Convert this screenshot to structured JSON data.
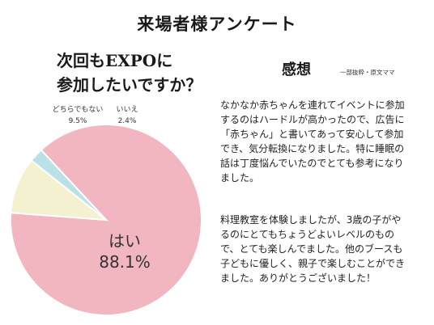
{
  "title": "来場者様アンケート",
  "question": {
    "line1": "次回もEXPOに",
    "line2": "参加したいですか？"
  },
  "impressions": {
    "heading": "感想",
    "note": "一部抜粋・原文ママ",
    "comments": [
      "なかなか赤ちゃんを連れてイベントに参加するのはハードルが高かったので、広告に「赤ちゃん」と書いてあって安心して参加でき、気分転換になりました。特に睡眠の話は丁度悩んでいたのでとても参考になりました。",
      "料理教室を体験しましたが、3歳の子がやるのにとてもちょうどよいレベルのもので、とても楽しんでました。他のブースも子どもに優しく、親子で楽しむことができました。ありがとうございました！"
    ]
  },
  "chart_data": {
    "type": "pie",
    "slices": [
      {
        "label": "はい",
        "value": 88.1,
        "value_text": "88.1%",
        "color": "#f2b6c0"
      },
      {
        "label": "どちらでもない",
        "value": 9.5,
        "value_text": "9.5%",
        "color": "#f3f1cf"
      },
      {
        "label": "いいえ",
        "value": 2.4,
        "value_text": "2.4%",
        "color": "#b9e1e6"
      }
    ]
  },
  "colors": {
    "background": "#ffffff",
    "text": "#222222",
    "slice_border": "#ffffff"
  }
}
